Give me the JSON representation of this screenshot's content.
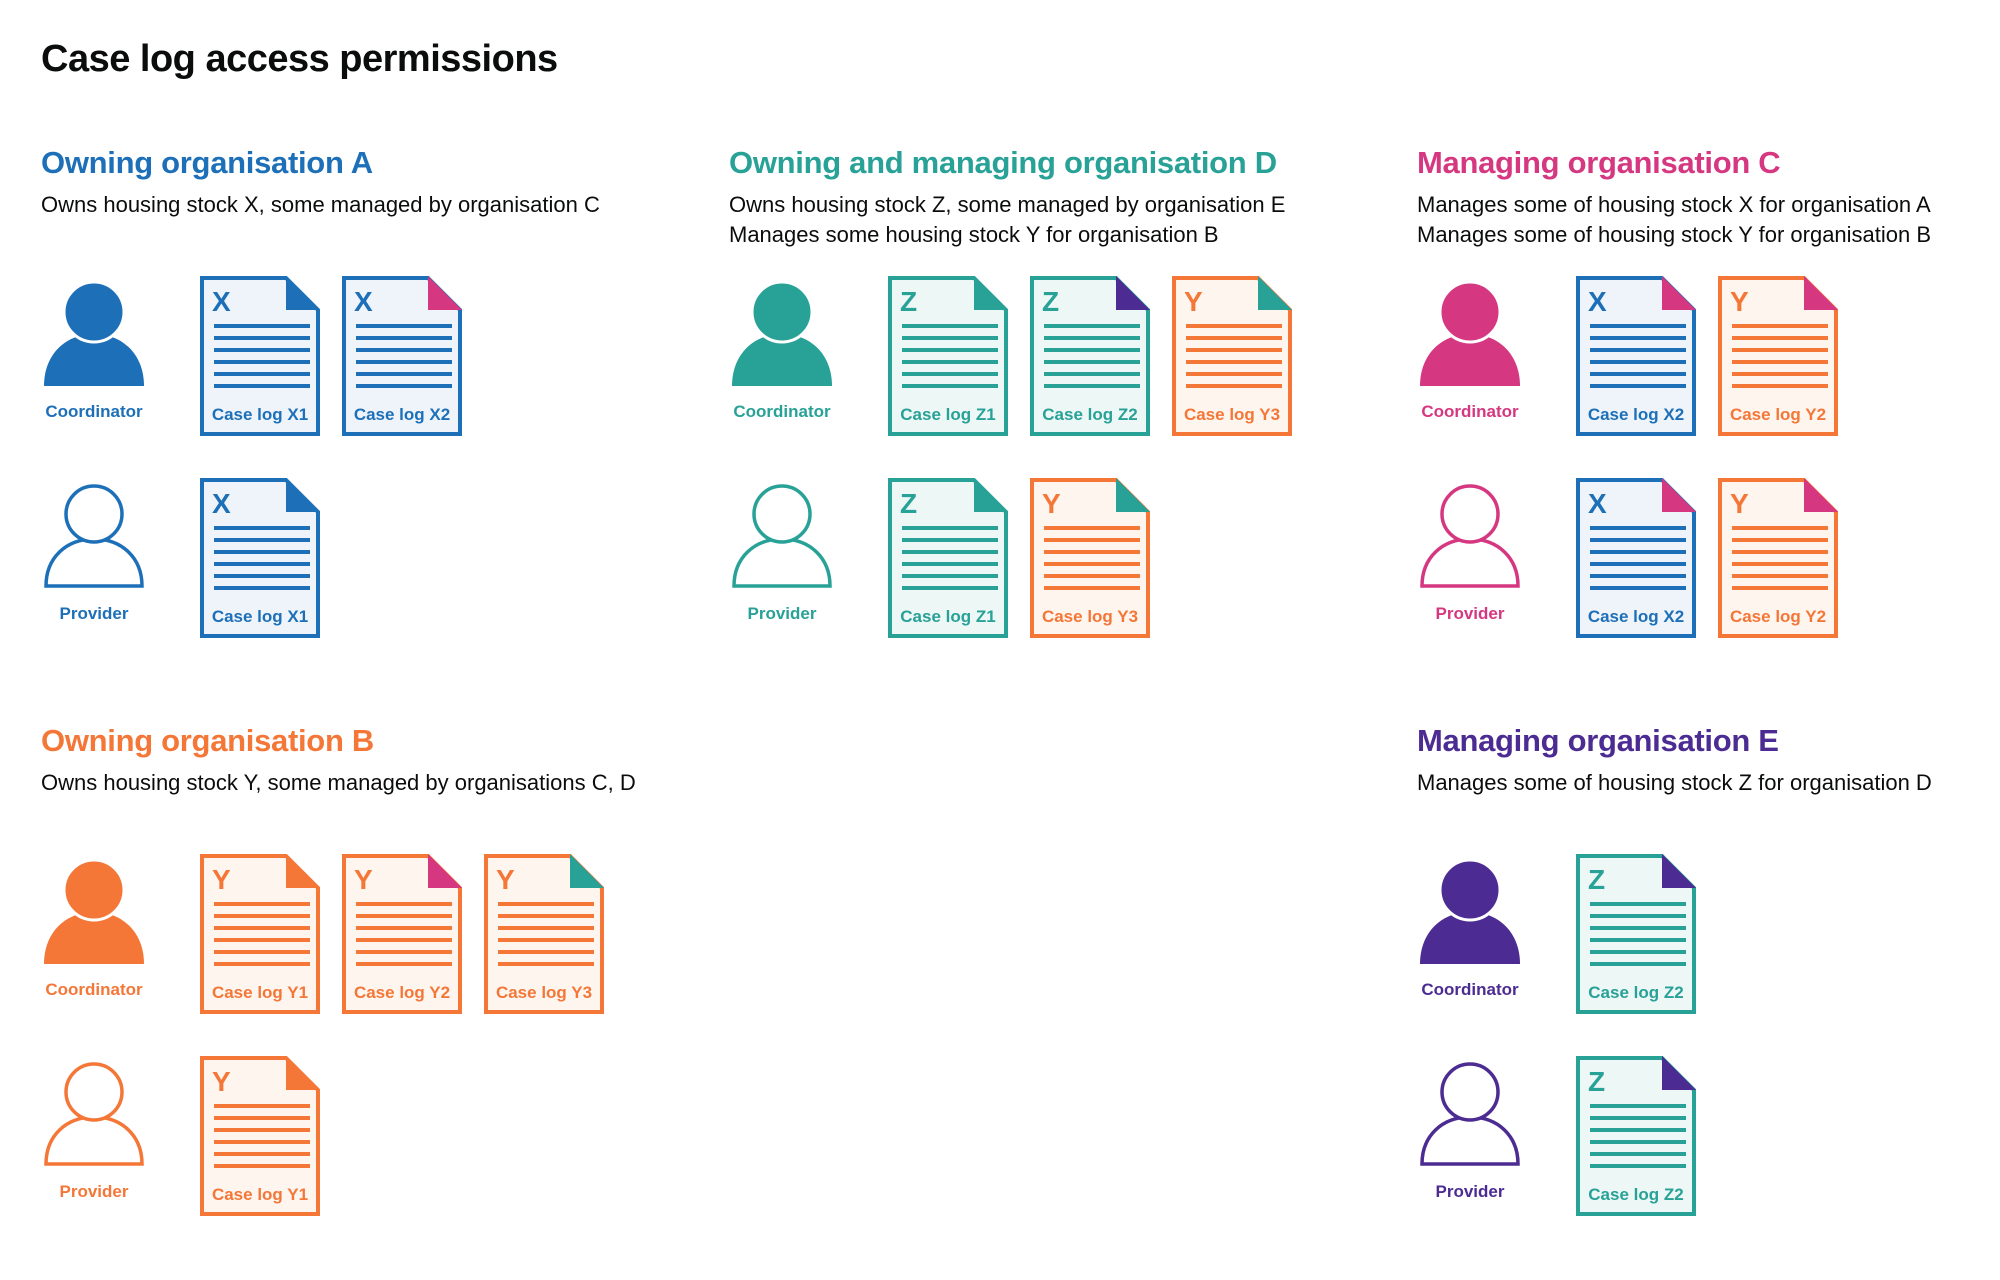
{
  "title": "Case log access permissions",
  "colors": {
    "blue": "#1d70b8",
    "teal": "#28a197",
    "pink": "#d53880",
    "orange": "#f47738",
    "purple": "#4c2c92",
    "tint_blue": "#eef4fa",
    "tint_teal": "#edf7f6",
    "tint_orange": "#fef5ef"
  },
  "sections": [
    {
      "title": "Owning organisation A",
      "color": "blue",
      "description": [
        "Owns housing stock X, some managed by organisation C"
      ],
      "rows": [
        {
          "role": "Coordinator",
          "icon": "person-filled-icon",
          "docs": [
            {
              "letter": "X",
              "label": "Case log X1",
              "color": "blue",
              "corner": "blue"
            },
            {
              "letter": "X",
              "label": "Case log X2",
              "color": "blue",
              "corner": "pink"
            }
          ]
        },
        {
          "role": "Provider",
          "icon": "person-outline-icon",
          "docs": [
            {
              "letter": "X",
              "label": "Case log X1",
              "color": "blue",
              "corner": "blue"
            }
          ]
        }
      ]
    },
    {
      "title": "Owning and managing organisation D",
      "color": "teal",
      "description": [
        "Owns housing stock Z, some managed by organisation E",
        "Manages some housing stock Y for organisation B"
      ],
      "rows": [
        {
          "role": "Coordinator",
          "icon": "person-filled-icon",
          "docs": [
            {
              "letter": "Z",
              "label": "Case log Z1",
              "color": "teal",
              "corner": "teal"
            },
            {
              "letter": "Z",
              "label": "Case log Z2",
              "color": "teal",
              "corner": "purple"
            },
            {
              "letter": "Y",
              "label": "Case log Y3",
              "color": "orange",
              "corner": "teal"
            }
          ]
        },
        {
          "role": "Provider",
          "icon": "person-outline-icon",
          "docs": [
            {
              "letter": "Z",
              "label": "Case log Z1",
              "color": "teal",
              "corner": "teal"
            },
            {
              "letter": "Y",
              "label": "Case log Y3",
              "color": "orange",
              "corner": "teal"
            }
          ]
        }
      ]
    },
    {
      "title": "Managing organisation C",
      "color": "pink",
      "description": [
        "Manages some of housing stock X for organisation A",
        "Manages some of housing stock Y for organisation B"
      ],
      "rows": [
        {
          "role": "Coordinator",
          "icon": "person-filled-icon",
          "docs": [
            {
              "letter": "X",
              "label": "Case log X2",
              "color": "blue",
              "corner": "pink"
            },
            {
              "letter": "Y",
              "label": "Case log Y2",
              "color": "orange",
              "corner": "pink"
            }
          ]
        },
        {
          "role": "Provider",
          "icon": "person-outline-icon",
          "docs": [
            {
              "letter": "X",
              "label": "Case log X2",
              "color": "blue",
              "corner": "pink"
            },
            {
              "letter": "Y",
              "label": "Case log Y2",
              "color": "orange",
              "corner": "pink"
            }
          ]
        }
      ]
    },
    {
      "title": "Owning organisation B",
      "color": "orange",
      "description": [
        "Owns housing stock Y, some managed by organisations C, D"
      ],
      "rows": [
        {
          "role": "Coordinator",
          "icon": "person-filled-icon",
          "docs": [
            {
              "letter": "Y",
              "label": "Case log Y1",
              "color": "orange",
              "corner": "orange"
            },
            {
              "letter": "Y",
              "label": "Case log Y2",
              "color": "orange",
              "corner": "pink"
            },
            {
              "letter": "Y",
              "label": "Case log Y3",
              "color": "orange",
              "corner": "teal"
            }
          ]
        },
        {
          "role": "Provider",
          "icon": "person-outline-icon",
          "docs": [
            {
              "letter": "Y",
              "label": "Case log Y1",
              "color": "orange",
              "corner": "orange"
            }
          ]
        }
      ]
    },
    {
      "title": "Managing organisation E",
      "color": "purple",
      "description": [
        "Manages some of housing stock Z for organisation D"
      ],
      "rows": [
        {
          "role": "Coordinator",
          "icon": "person-filled-icon",
          "docs": [
            {
              "letter": "Z",
              "label": "Case log Z2",
              "color": "teal",
              "corner": "purple"
            }
          ]
        },
        {
          "role": "Provider",
          "icon": "person-outline-icon",
          "docs": [
            {
              "letter": "Z",
              "label": "Case log Z2",
              "color": "teal",
              "corner": "purple"
            }
          ]
        }
      ]
    }
  ]
}
